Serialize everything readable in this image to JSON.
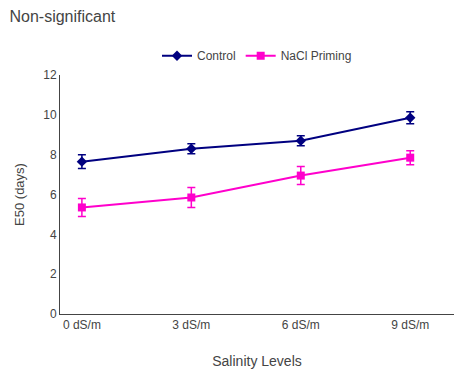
{
  "chart_data": {
    "type": "line",
    "title": "Non-significant",
    "xlabel": "Salinity Levels",
    "ylabel": "E50 (days)",
    "x": [
      0,
      3,
      6,
      9
    ],
    "xlim": [
      -0.6,
      10.2
    ],
    "xticks": [
      {
        "value": 0,
        "label": "0 dS/m"
      },
      {
        "value": 3,
        "label": "3 dS/m"
      },
      {
        "value": 6,
        "label": "6 dS/m"
      },
      {
        "value": 9,
        "label": "9 dS/m"
      }
    ],
    "ylim": [
      0,
      12
    ],
    "yticks": [
      0,
      2,
      4,
      6,
      8,
      10,
      12
    ],
    "grid": false,
    "legend": "top",
    "series": [
      {
        "name": "Control",
        "color": "#000080",
        "marker": "diamond",
        "values": [
          7.65,
          8.3,
          8.7,
          9.85
        ],
        "yerr": [
          0.35,
          0.25,
          0.25,
          0.3
        ]
      },
      {
        "name": "NaCl Priming",
        "color": "#FF00CC",
        "marker": "square",
        "values": [
          5.35,
          5.85,
          6.95,
          7.85
        ],
        "yerr": [
          0.45,
          0.5,
          0.45,
          0.35
        ]
      }
    ]
  }
}
